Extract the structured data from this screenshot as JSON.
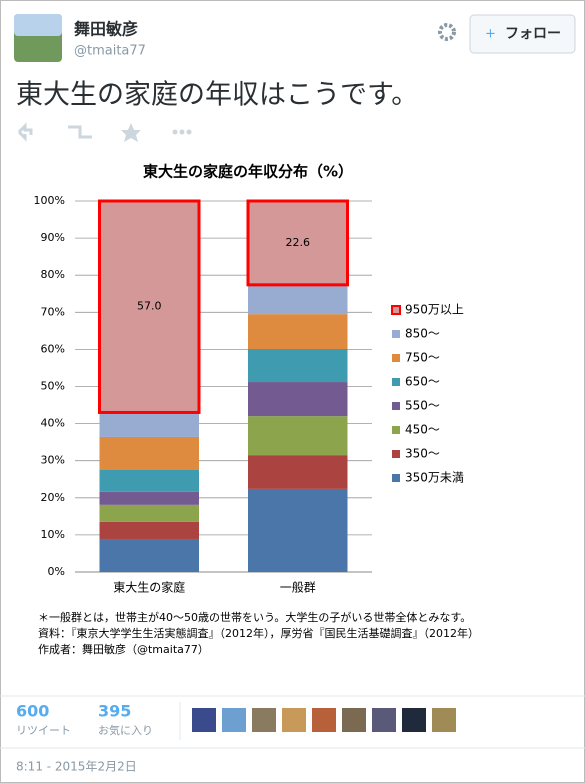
{
  "tweet": {
    "name": "舞田敏彦",
    "handle": "@tmaita77",
    "follow": "フォロー",
    "text": "東大生の家庭の年収はこうです。",
    "retweets": {
      "count": "600",
      "label": "リツイート"
    },
    "favorites": {
      "count": "395",
      "label": "お気に入り"
    },
    "timestamp": "8:11 - 2015年2月2日"
  },
  "chart_data": {
    "type": "stacked_bar",
    "title": "東大生の家庭の年収分布（%）",
    "categories": [
      "東大生の家庭",
      "一般群"
    ],
    "series": [
      {
        "name": "350万未満",
        "color": "#4a76aa",
        "values": [
          8.9,
          22.4
        ]
      },
      {
        "name": "350〜",
        "color": "#ab4441",
        "values": [
          4.6,
          9.1
        ]
      },
      {
        "name": "450〜",
        "color": "#8ca54c",
        "values": [
          4.6,
          10.5
        ]
      },
      {
        "name": "550〜",
        "color": "#735a91",
        "values": [
          3.5,
          9.2
        ]
      },
      {
        "name": "650〜",
        "color": "#3e9bb0",
        "values": [
          5.9,
          8.9
        ]
      },
      {
        "name": "750〜",
        "color": "#de8a3f",
        "values": [
          8.9,
          9.4
        ]
      },
      {
        "name": "850〜",
        "color": "#98acd2",
        "values": [
          6.6,
          7.9
        ]
      },
      {
        "name": "950万以上",
        "color": "#d49898",
        "outline": "#ff0000",
        "values": [
          57,
          22.6
        ],
        "value_labels": [
          "57.0",
          "22.6"
        ]
      }
    ],
    "ylim": [
      0,
      100
    ],
    "yticks": [
      {
        "value": 0,
        "label": "0%"
      },
      {
        "value": 10,
        "label": "10%"
      },
      {
        "value": 20,
        "label": "20%"
      },
      {
        "value": 30,
        "label": "30%"
      },
      {
        "value": 40,
        "label": "40%"
      },
      {
        "value": 50,
        "label": "50%"
      },
      {
        "value": 60,
        "label": "60%"
      },
      {
        "value": 70,
        "label": "70%"
      },
      {
        "value": 80,
        "label": "80%"
      },
      {
        "value": 90,
        "label": "90%"
      },
      {
        "value": 100,
        "label": "100%"
      }
    ],
    "grid": true,
    "legend": "right",
    "notes": [
      "＊一般群とは，世帯主が40〜50歳の世帯をいう。大学生の子がいる世帯全体とみなす。",
      "資料：『東京大学学生生活実態調査』（2012年），厚労省『国民生活基礎調査』（2012年）",
      "作成者：舞田敏彦（@tmaita77）"
    ]
  }
}
